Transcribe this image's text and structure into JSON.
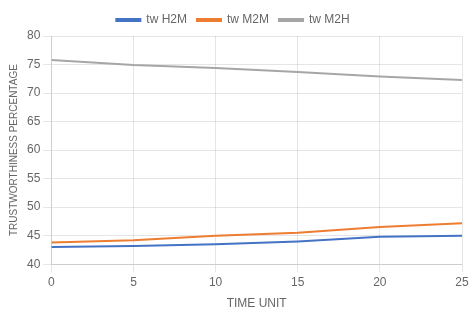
{
  "chart_data": {
    "type": "line",
    "xlabel": "TIME UNIT",
    "ylabel": "TRUSTWORTHINESS PERCENTAGE",
    "x": [
      0,
      5,
      10,
      15,
      20,
      25
    ],
    "series": [
      {
        "name": "tw H2M",
        "color": "#4472C4",
        "values": [
          43.0,
          43.2,
          43.5,
          44.0,
          44.8,
          45.0
        ]
      },
      {
        "name": "tw M2M",
        "color": "#ED7D31",
        "values": [
          43.8,
          44.2,
          45.0,
          45.5,
          46.5,
          47.2
        ]
      },
      {
        "name": "tw M2H",
        "color": "#A6A6A6",
        "values": [
          75.8,
          74.9,
          74.4,
          73.7,
          72.9,
          72.3
        ]
      }
    ],
    "xlim": [
      0,
      25
    ],
    "ylim": [
      40,
      80
    ],
    "xticks": [
      0,
      5,
      10,
      15,
      20,
      25
    ],
    "yticks": [
      40,
      45,
      50,
      55,
      60,
      65,
      70,
      75,
      80
    ],
    "grid": true,
    "legend": "top"
  }
}
